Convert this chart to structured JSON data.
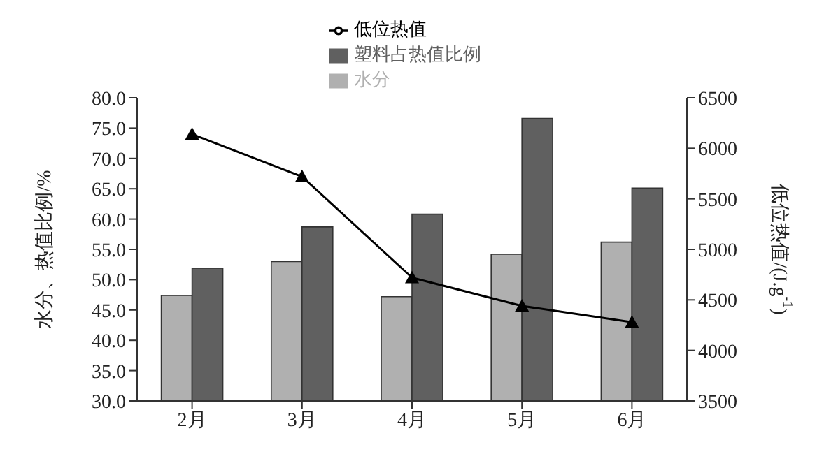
{
  "chart_data": {
    "type": "bar",
    "categories": [
      "2月",
      "3月",
      "4月",
      "5月",
      "6月"
    ],
    "series": [
      {
        "name": "水分",
        "color": "#b0b0b0",
        "values": [
          47.4,
          53.0,
          47.2,
          54.2,
          56.2
        ]
      },
      {
        "name": "塑料占热值比例",
        "color": "#606060",
        "values": [
          51.9,
          58.7,
          60.8,
          76.6,
          65.1
        ]
      },
      {
        "name": "低位热值",
        "type": "line",
        "axis": "y2",
        "color": "#000000",
        "values": [
          6140,
          5720,
          4720,
          4440,
          4280
        ]
      }
    ],
    "ylabel": "水分、热值比例/%",
    "y2label": "低位热值/(J.g$^{-1}$)",
    "ylim": [
      30,
      80
    ],
    "yticks": [
      {
        "value": 30,
        "label": "30.0"
      },
      {
        "value": 35,
        "label": "35.0"
      },
      {
        "value": 40,
        "label": "40.0"
      },
      {
        "value": 45,
        "label": "45.0"
      },
      {
        "value": 50,
        "label": "50.0"
      },
      {
        "value": 55,
        "label": "55.0"
      },
      {
        "value": 60,
        "label": "60.0"
      },
      {
        "value": 65,
        "label": "65.0"
      },
      {
        "value": 70,
        "label": "70.0"
      },
      {
        "value": 75,
        "label": "75.0"
      },
      {
        "value": 80,
        "label": "80.0"
      }
    ],
    "y2lim": [
      3500,
      6500
    ],
    "y2ticks": [
      3500,
      4000,
      4500,
      5000,
      5500,
      6000,
      6500
    ],
    "legend": "top",
    "grid": false,
    "marker": "triangle",
    "line_style": "solid"
  }
}
